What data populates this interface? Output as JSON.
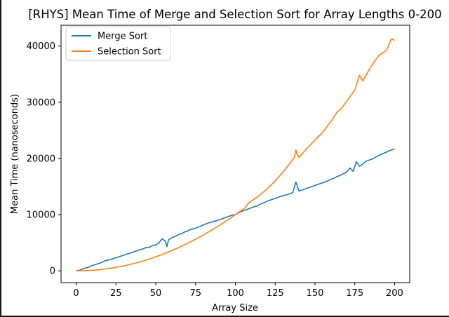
{
  "chart_data": {
    "type": "line",
    "title": "[RHYS] Mean Time of Merge and Selection Sort for Array Lengths 0-200",
    "xlabel": "Array Size",
    "ylabel": "Mean Time (nanoseconds)",
    "xlim": [
      -9.5,
      209.5
    ],
    "ylim": [
      -2100,
      43700
    ],
    "xticks": [
      0,
      25,
      50,
      75,
      100,
      125,
      150,
      175,
      200
    ],
    "yticks": [
      0,
      10000,
      20000,
      30000,
      40000
    ],
    "grid": false,
    "legend_position": "top-left",
    "series": [
      {
        "name": "Merge Sort",
        "color": "#1f77b4",
        "x": [
          0,
          2,
          4,
          6,
          8,
          10,
          12,
          14,
          16,
          18,
          20,
          22,
          24,
          26,
          28,
          30,
          32,
          34,
          36,
          38,
          40,
          42,
          44,
          46,
          48,
          50,
          52,
          54,
          56,
          57,
          58,
          60,
          62,
          64,
          66,
          68,
          70,
          72,
          74,
          76,
          78,
          80,
          82,
          84,
          86,
          88,
          90,
          92,
          94,
          96,
          98,
          100,
          102,
          104,
          106,
          108,
          110,
          112,
          114,
          116,
          118,
          120,
          122,
          124,
          126,
          128,
          130,
          132,
          134,
          136,
          138,
          140,
          142,
          144,
          146,
          148,
          150,
          152,
          154,
          156,
          158,
          160,
          162,
          164,
          166,
          168,
          170,
          172,
          174,
          176,
          178,
          180,
          182,
          184,
          186,
          188,
          190,
          192,
          194,
          196,
          198,
          200
        ],
        "y": [
          0,
          80,
          350,
          500,
          700,
          950,
          1100,
          1300,
          1500,
          1750,
          1900,
          2050,
          2250,
          2400,
          2600,
          2800,
          3000,
          3150,
          3350,
          3550,
          3750,
          3900,
          4150,
          4200,
          4500,
          4600,
          5000,
          5700,
          5300,
          4300,
          5500,
          5900,
          6100,
          6400,
          6600,
          6900,
          7100,
          7400,
          7500,
          7700,
          7900,
          8200,
          8400,
          8600,
          8800,
          8900,
          9100,
          9300,
          9500,
          9700,
          9900,
          10000,
          10300,
          10600,
          10800,
          11000,
          11200,
          11400,
          11600,
          11900,
          12100,
          12400,
          12600,
          12800,
          13000,
          13200,
          13400,
          13500,
          13700,
          13900,
          15800,
          14200,
          14400,
          14600,
          14800,
          15000,
          15200,
          15400,
          15600,
          15800,
          16000,
          16300,
          16500,
          16800,
          17000,
          17300,
          17600,
          18300,
          17700,
          19400,
          18600,
          19000,
          19500,
          19700,
          19900,
          20200,
          20500,
          20800,
          21000,
          21300,
          21500,
          21700
        ]
      },
      {
        "name": "Selection Sort",
        "color": "#ff7f0e",
        "x": [
          0,
          5,
          10,
          15,
          20,
          25,
          30,
          35,
          40,
          45,
          50,
          55,
          60,
          65,
          70,
          75,
          80,
          85,
          90,
          95,
          100,
          102,
          104,
          106,
          108,
          110,
          115,
          120,
          125,
          130,
          135,
          137,
          138,
          139,
          140,
          145,
          150,
          155,
          160,
          162,
          164,
          166,
          170,
          175,
          178,
          180,
          185,
          190,
          195,
          198,
          200
        ],
        "y": [
          0,
          30,
          100,
          220,
          400,
          620,
          900,
          1220,
          1600,
          2020,
          2500,
          3020,
          3600,
          4220,
          4900,
          5620,
          6400,
          7220,
          8100,
          9020,
          10000,
          10400,
          10800,
          11200,
          12000,
          12400,
          13400,
          14600,
          16000,
          17600,
          19400,
          20200,
          21500,
          20600,
          20200,
          21800,
          23300,
          24700,
          26600,
          27400,
          28300,
          28700,
          30200,
          32200,
          34800,
          33800,
          36300,
          38300,
          39300,
          41300,
          41000
        ]
      }
    ]
  }
}
